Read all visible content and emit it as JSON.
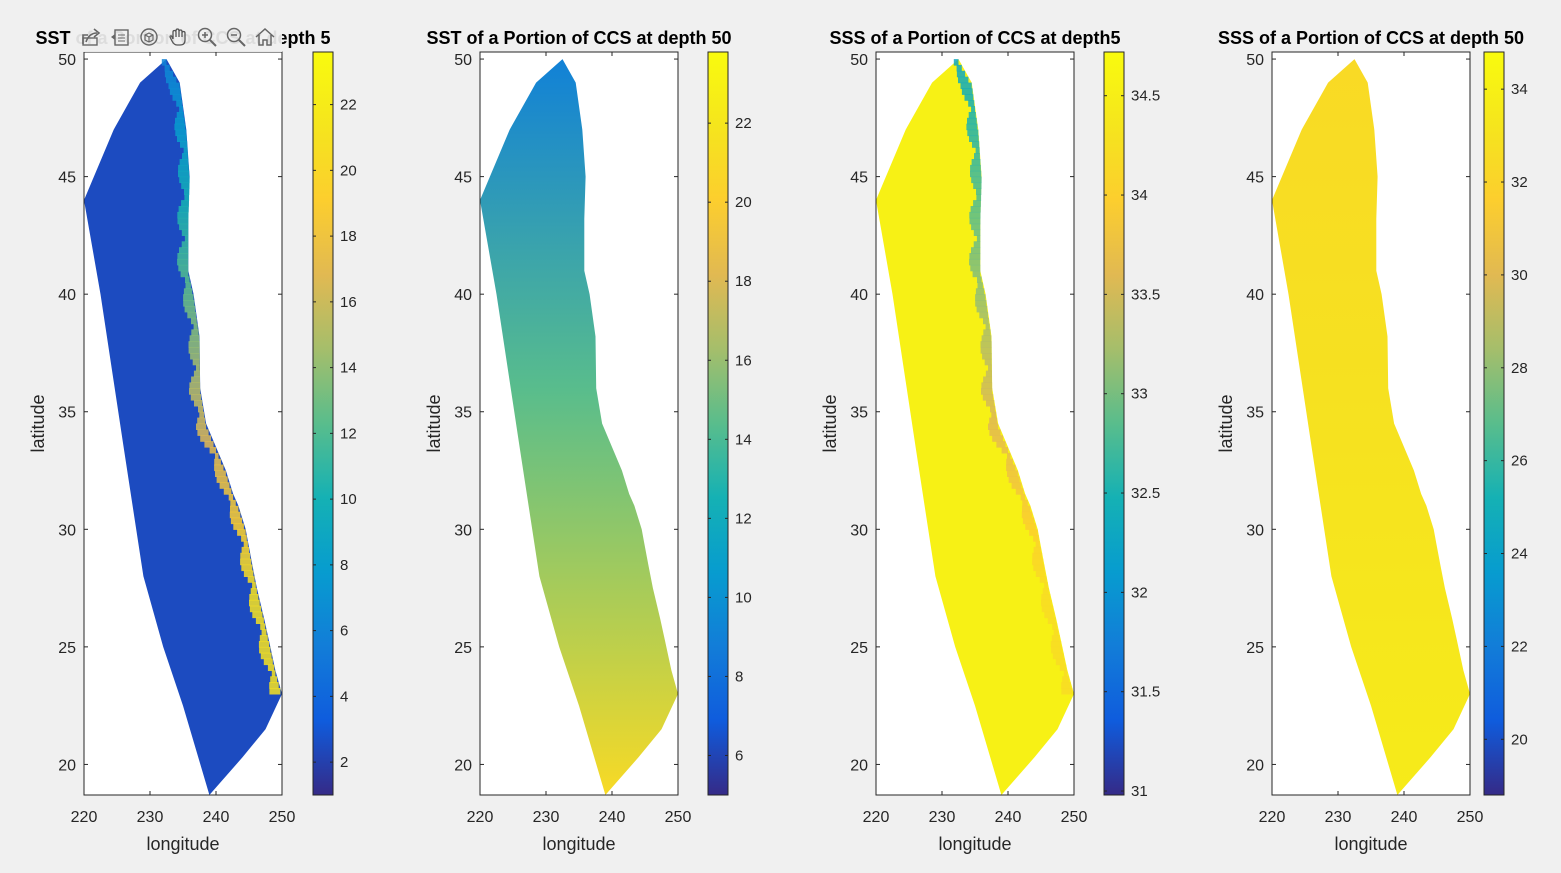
{
  "toolbar": {
    "icons": [
      "export-icon",
      "brush-icon",
      "rotate-3d-icon",
      "pan-hand-icon",
      "zoom-in-icon",
      "zoom-out-icon",
      "home-icon"
    ]
  },
  "chart_data": [
    {
      "type": "heatmap",
      "title": "SST of a Portion of CCS at depth 5",
      "xlabel": "longitude",
      "ylabel": "latitude",
      "xlim": [
        220,
        250
      ],
      "ylim": [
        18.7,
        50.3
      ],
      "x_ticks": [
        220,
        230,
        240,
        250
      ],
      "y_ticks": [
        20,
        25,
        30,
        35,
        40,
        45,
        50
      ],
      "colormap": "parula",
      "colorbar": {
        "range": [
          1.0,
          23.6
        ],
        "ticks": [
          2,
          4,
          6,
          8,
          10,
          12,
          14,
          16,
          18,
          20,
          22
        ]
      },
      "domain_typical_value": 2.5,
      "coastal_range": [
        6,
        21
      ]
    },
    {
      "type": "heatmap",
      "title": "SST of a Portion of CCS at depth 50",
      "xlabel": "longitude",
      "ylabel": "latitude",
      "xlim": [
        220,
        250
      ],
      "ylim": [
        18.7,
        50.3
      ],
      "x_ticks": [
        220,
        230,
        240,
        250
      ],
      "y_ticks": [
        20,
        25,
        30,
        35,
        40,
        45,
        50
      ],
      "colormap": "parula",
      "colorbar": {
        "range": [
          5.0,
          23.8
        ],
        "ticks": [
          6,
          8,
          10,
          12,
          14,
          16,
          18,
          20,
          22
        ]
      },
      "north_value": 9,
      "south_value": 21
    },
    {
      "type": "heatmap",
      "title": "SSS of a Portion of CCS at depth5",
      "xlabel": "longitude",
      "ylabel": "latitude",
      "xlim": [
        220,
        250
      ],
      "ylim": [
        18.7,
        50.3
      ],
      "x_ticks": [
        220,
        230,
        240,
        250
      ],
      "y_ticks": [
        20,
        25,
        30,
        35,
        40,
        45,
        50
      ],
      "colormap": "parula",
      "colorbar": {
        "range": [
          30.98,
          34.72
        ],
        "ticks": [
          31,
          31.5,
          32,
          32.5,
          33,
          33.5,
          34,
          34.5
        ]
      },
      "domain_typical_value": 34.55,
      "coastal_range": [
        32.3,
        34.2
      ]
    },
    {
      "type": "heatmap",
      "title": "SSS of a Portion of CCS at depth 50",
      "xlabel": "longitude",
      "ylabel": "latitude",
      "xlim": [
        220,
        250
      ],
      "ylim": [
        18.7,
        50.3
      ],
      "x_ticks": [
        220,
        230,
        240,
        250
      ],
      "y_ticks": [
        20,
        25,
        30,
        35,
        40,
        45,
        50
      ],
      "colormap": "parula",
      "colorbar": {
        "range": [
          18.8,
          34.8
        ],
        "ticks": [
          20,
          22,
          24,
          26,
          28,
          30,
          32,
          34
        ]
      },
      "north_value": 32.4,
      "south_value": 33.6
    }
  ]
}
